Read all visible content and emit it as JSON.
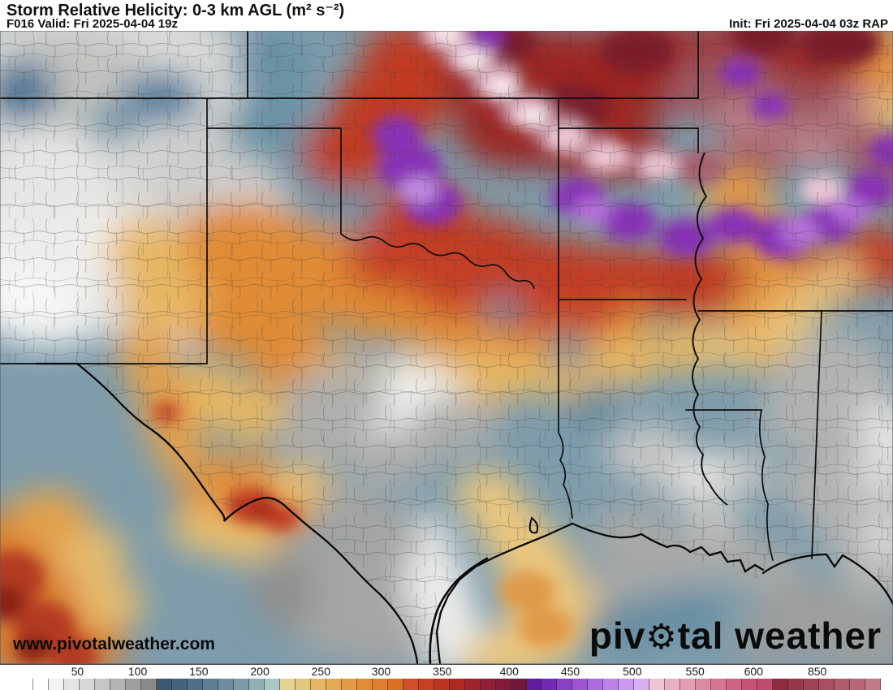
{
  "header": {
    "title": "Storm Relative Helicity: 0-3 km AGL (m² s⁻²)",
    "valid": "F016 Valid: Fri 2025-04-04 19z",
    "init": "Init: Fri 2025-04-04 03z RAP"
  },
  "map": {
    "watermark_pre": "piv",
    "watermark_gear": "⚙",
    "watermark_post": "tal weather",
    "url": "www.pivotalweather.com"
  },
  "colorbar": {
    "units": "m² s⁻²",
    "ticks": [
      {
        "label": "50",
        "pct": 5.3
      },
      {
        "label": "100",
        "pct": 12.4
      },
      {
        "label": "150",
        "pct": 19.6
      },
      {
        "label": "200",
        "pct": 26.8
      },
      {
        "label": "250",
        "pct": 34.0
      },
      {
        "label": "300",
        "pct": 41.1
      },
      {
        "label": "350",
        "pct": 48.3
      },
      {
        "label": "400",
        "pct": 56.2
      },
      {
        "label": "450",
        "pct": 63.4
      },
      {
        "label": "500",
        "pct": 70.7
      },
      {
        "label": "550",
        "pct": 78.1
      },
      {
        "label": "600",
        "pct": 85.0
      },
      {
        "label": "850",
        "pct": 92.5
      }
    ],
    "cells": [
      "#ffffff",
      "#f2f2f2",
      "#e5e5e5",
      "#d7d7d7",
      "#c6c6c6",
      "#b3b3b3",
      "#9e9e9e",
      "#898989",
      "#3a5970",
      "#44637d",
      "#50708a",
      "#5e7e96",
      "#6e8ca0",
      "#7f9baa",
      "#93afb6",
      "#abc6c6",
      "#e5d391",
      "#e4c57d",
      "#e6b765",
      "#e6a852",
      "#e59a44",
      "#e28c3a",
      "#de7e2e",
      "#da6e22",
      "#d14f28",
      "#c64124",
      "#bb3420",
      "#ae2a1f",
      "#9e2431",
      "#8f1f36",
      "#801b3a",
      "#70173c",
      "#5e1d9e",
      "#7228b4",
      "#8a3fc6",
      "#9c55d2",
      "#ad6cdd",
      "#bd82e6",
      "#cc99ee",
      "#d9aef2",
      "#f0c3d0",
      "#eab0c1",
      "#e39db1",
      "#dc8aa1",
      "#d57792",
      "#cd6483",
      "#c55174",
      "#c04b6d",
      "#8e2c3e",
      "#96384a",
      "#9e4456",
      "#a65062",
      "#ae5c6e",
      "#b6687a",
      "#c07a88"
    ]
  }
}
